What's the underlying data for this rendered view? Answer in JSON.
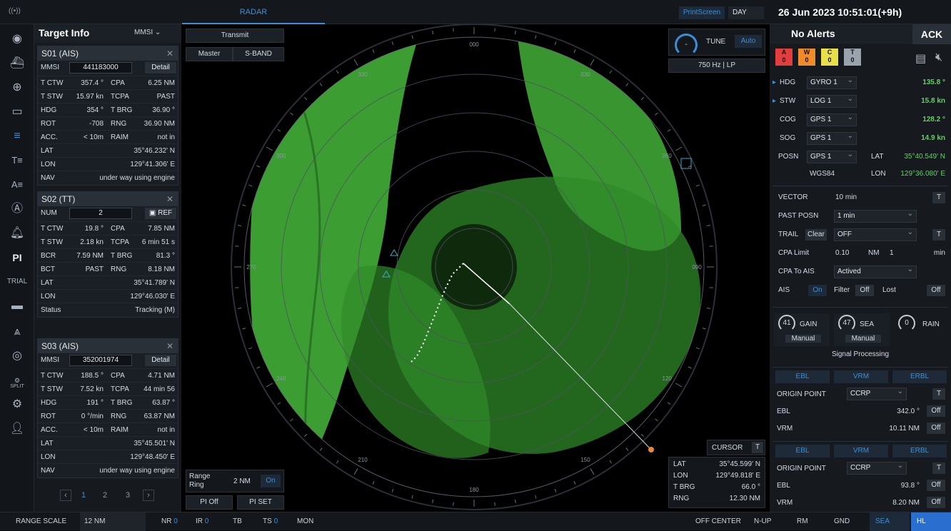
{
  "topbar": {
    "signal_icon": "((•))",
    "center_tab": "RADAR",
    "print_screen": "PrintScreen",
    "day_mode": "DAY",
    "datetime": "26 Jun 2023 10:51:01(+9h)"
  },
  "sidebar_icons": [
    "target-icon",
    "ship-icon",
    "crosshair-icon",
    "monitor-icon",
    "layers-icon",
    "text-list-icon",
    "text-align-icon",
    "ais-a-icon",
    "bell-icon",
    "pi-icon",
    "trial-icon",
    "slider-icon",
    "compass-icon",
    "lifebuoy-icon",
    "settings-gear-icon",
    "settings-icon",
    "user-icon"
  ],
  "sidebar_labels": {
    "te": "T≡",
    "ae": "A≡",
    "a": "Ⓐ",
    "pi": "PI",
    "trial": "TRIAL",
    "split": "SPLIT"
  },
  "target_info": {
    "title": "Target Info",
    "selector": "MMSI",
    "s01": {
      "title": "S01 (AIS)",
      "mmsi_label": "MMSI",
      "mmsi": "441183000",
      "detail": "Detail",
      "rows": [
        [
          "T CTW",
          "357.4 °",
          "CPA",
          "6.25 NM"
        ],
        [
          "T STW",
          "15.97 kn",
          "TCPA",
          "PAST"
        ],
        [
          "HDG",
          "354 °",
          "T BRG",
          "36.90 °"
        ],
        [
          "ROT",
          "-708",
          "RNG",
          "36.90 NM"
        ],
        [
          "ACC.",
          "< 10m",
          "RAIM",
          "not in"
        ]
      ],
      "lat_label": "LAT",
      "lat": "35°46.232' N",
      "lon_label": "LON",
      "lon": "129°41.306' E",
      "nav_label": "NAV",
      "nav": "under way using engine"
    },
    "s02": {
      "title": "S02 (TT)",
      "num_label": "NUM",
      "num": "2",
      "ref": "REF",
      "rows": [
        [
          "T CTW",
          "19.8 °",
          "CPA",
          "7.85 NM"
        ],
        [
          "T STW",
          "2.18 kn",
          "TCPA",
          "6 min 51 s"
        ],
        [
          "BCR",
          "7.59 NM",
          "T BRG",
          "81.3 °"
        ],
        [
          "BCT",
          "PAST",
          "RNG",
          "8.18 NM"
        ]
      ],
      "lat_label": "LAT",
      "lat": "35°41.789' N",
      "lon_label": "LON",
      "lon": "129°46.030' E",
      "status_label": "Status",
      "status": "Tracking (M)"
    },
    "s03": {
      "title": "S03 (AIS)",
      "mmsi_label": "MMSI",
      "mmsi": "352001974",
      "detail": "Detail",
      "rows": [
        [
          "T CTW",
          "188.5 °",
          "CPA",
          "4.71 NM"
        ],
        [
          "T STW",
          "7.52 kn",
          "TCPA",
          "44 min 56"
        ],
        [
          "HDG",
          "191 °",
          "T BRG",
          "63.87 °"
        ],
        [
          "ROT",
          "0 °/min",
          "RNG",
          "63.87 NM"
        ],
        [
          "ACC.",
          "< 10m",
          "RAIM",
          "not in"
        ]
      ],
      "lat_label": "LAT",
      "lat": "35°45.501' N",
      "lon_label": "LON",
      "lon": "129°48.450' E",
      "nav_label": "NAV",
      "nav": "under way using engine"
    },
    "pages": [
      "1",
      "2",
      "3"
    ]
  },
  "radar": {
    "transmit": "Transmit",
    "master": "Master",
    "band": "S-BAND",
    "tune": "TUNE",
    "tune_mode": "Auto",
    "pulse": "750 Hz | LP",
    "tune_knob": "-",
    "bearings": [
      "000",
      "030",
      "060",
      "090",
      "120",
      "150",
      "180",
      "210",
      "240",
      "270",
      "300",
      "330"
    ],
    "range_ring_label": "Range\nRing",
    "range_ring_value": "2 NM",
    "range_ring_state": "On",
    "pi_off": "PI Off",
    "pi_set": "PI SET",
    "cursor": {
      "title": "CURSOR",
      "mode": "T",
      "lat_label": "LAT",
      "lat": "35°45.599' N",
      "lon_label": "LON",
      "lon": "129°49.818' E",
      "tbrg_label": "T BRG",
      "tbrg": "66.0 °",
      "rng_label": "RNG",
      "rng": "12.30 NM"
    }
  },
  "right": {
    "alerts_title": "No Alerts",
    "ack": "ACK",
    "alerts": [
      {
        "letter": "A",
        "count": "0",
        "color": "#e43d3d"
      },
      {
        "letter": "W",
        "count": "0",
        "color": "#f08a2a"
      },
      {
        "letter": "C",
        "count": "0",
        "color": "#e8e04a"
      },
      {
        "letter": "T",
        "count": "0",
        "color": "#9aa3ad"
      }
    ],
    "sensors": [
      {
        "label": "HDG",
        "src": "GYRO 1",
        "value": "135.8 °",
        "arrow": "▸"
      },
      {
        "label": "STW",
        "src": "LOG 1",
        "value": "15.8 kn",
        "arrow": "▸"
      },
      {
        "label": "COG",
        "src": "GPS 1",
        "value": "128.2 °",
        "arrow": ""
      },
      {
        "label": "SOG",
        "src": "GPS 1",
        "value": "14.9 kn",
        "arrow": ""
      }
    ],
    "posn": {
      "label": "POSN",
      "src": "GPS 1",
      "datum": "WGS84",
      "lat_label": "LAT",
      "lat": "35°40.549' N",
      "lon_label": "LON",
      "lon": "129°36.080' E"
    },
    "vector": {
      "label": "VECTOR",
      "value": "10 min",
      "mode": "T"
    },
    "past_posn": {
      "label": "PAST POSN",
      "value": "1 min"
    },
    "trail": {
      "label": "TRAIL",
      "clear": "Clear",
      "value": "OFF",
      "mode": "T"
    },
    "cpa_limit": {
      "label": "CPA Limit",
      "value": "0.10",
      "unit": "NM",
      "t_value": "1",
      "t_unit": "min"
    },
    "cpa_to_ais": {
      "label": "CPA To AIS",
      "value": "Actived"
    },
    "ais": {
      "label": "AIS",
      "state": "On",
      "filter_label": "Filter",
      "filter": "Off",
      "lost_label": "Lost",
      "lost": "Off"
    },
    "gain": {
      "value": "41",
      "label": "GAIN",
      "mode": "Manual"
    },
    "sea": {
      "value": "47",
      "label": "SEA",
      "mode": "Manual"
    },
    "rain": {
      "value": "0",
      "label": "RAIN"
    },
    "signal_processing": "Signal Processing",
    "ebl1": {
      "tabs": [
        "EBL",
        "VRM",
        "ERBL"
      ],
      "origin_label": "ORIGIN POINT",
      "origin": "CCRP",
      "origin_mode": "T",
      "ebl_label": "EBL",
      "ebl": "342.0 °",
      "ebl_state": "Off",
      "vrm_label": "VRM",
      "vrm": "10.11 NM",
      "vrm_state": "Off"
    },
    "ebl2": {
      "tabs": [
        "EBL",
        "VRM",
        "ERBL"
      ],
      "origin_label": "ORIGIN POINT",
      "origin": "CCRP",
      "origin_mode": "T",
      "ebl_label": "EBL",
      "ebl": "93.8 °",
      "ebl_state": "Off",
      "vrm_label": "VRM",
      "vrm": "8.20 NM",
      "vrm_state": "Off"
    }
  },
  "bottom": {
    "range_scale_label": "RANGE SCALE",
    "range_scale": "12 NM",
    "nr": "NR",
    "nr_v": "0",
    "ir": "IR",
    "ir_v": "0",
    "tb": "TB",
    "ts": "TS",
    "ts_v": "0",
    "mon": "MON",
    "off_center": "OFF CENTER",
    "nup": "N-UP",
    "rm": "RM",
    "gnd": "GND",
    "sea": "SEA",
    "hl": "HL"
  }
}
